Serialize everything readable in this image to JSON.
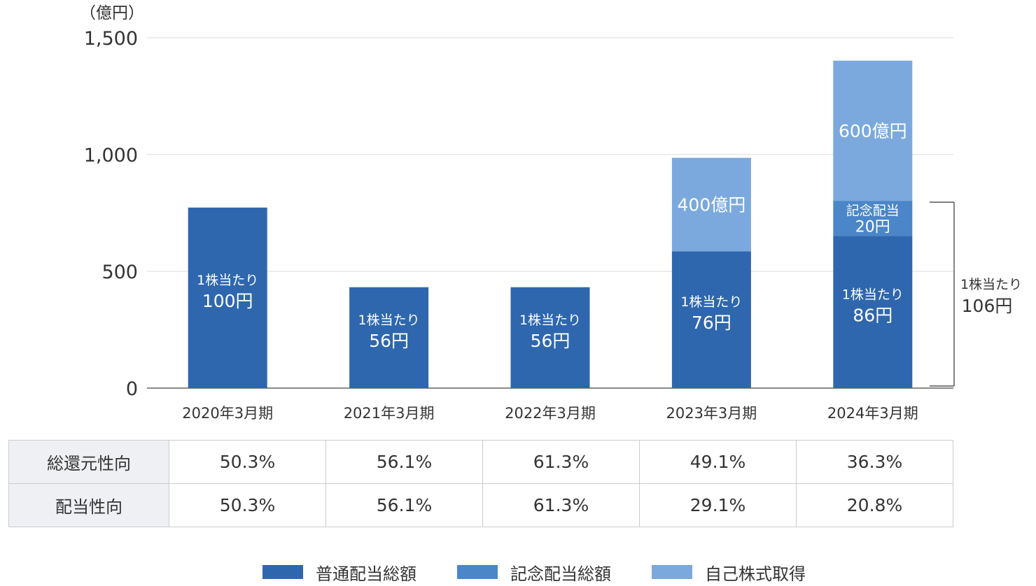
{
  "chart_data": {
    "type": "bar",
    "stacked": true,
    "unit_label": "（億円）",
    "ylim": [
      0,
      1500
    ],
    "yticks": [
      "0",
      "500",
      "1,000",
      "1,500"
    ],
    "ytick_values": [
      0,
      500,
      1000,
      1500
    ],
    "grid": true,
    "categories": [
      "2020年3月期",
      "2021年3月期",
      "2022年3月期",
      "2023年3月期",
      "2024年3月期"
    ],
    "series": [
      {
        "name": "普通配当総額",
        "color": "#2f67ae",
        "values": [
          773,
          432,
          432,
          586,
          651
        ]
      },
      {
        "name": "記念配当総額",
        "color": "#4a86c8",
        "values": [
          0,
          0,
          0,
          0,
          151
        ]
      },
      {
        "name": "自己株式取得",
        "color": "#7ba9de",
        "values": [
          0,
          0,
          0,
          400,
          600
        ]
      }
    ],
    "bar_labels": [
      [
        {
          "line1": "1株当たり",
          "line2": "100円"
        },
        null,
        null
      ],
      [
        {
          "line1": "1株当たり",
          "line2": "56円"
        },
        null,
        null
      ],
      [
        {
          "line1": "1株当たり",
          "line2": "56円"
        },
        null,
        null
      ],
      [
        {
          "line1": "1株当たり",
          "line2": "76円"
        },
        null,
        {
          "line1": "",
          "line2": "400億円"
        }
      ],
      [
        {
          "line1": "1株当たり",
          "line2": "86円"
        },
        {
          "line1": "記念配当",
          "line2": "20円"
        },
        {
          "line1": "",
          "line2": "600億円"
        }
      ]
    ],
    "bracket_annotation": {
      "line1": "1株当たり",
      "line2": "106円"
    }
  },
  "table": {
    "rows": [
      {
        "label": "総還元性向",
        "values": [
          "50.3%",
          "56.1%",
          "61.3%",
          "49.1%",
          "36.3%"
        ]
      },
      {
        "label": "配当性向",
        "values": [
          "50.3%",
          "56.1%",
          "61.3%",
          "29.1%",
          "20.8%"
        ]
      }
    ]
  },
  "legend": [
    {
      "label": "普通配当総額",
      "color": "#2f67ae"
    },
    {
      "label": "記念配当総額",
      "color": "#4a86c8"
    },
    {
      "label": "自己株式取得",
      "color": "#7ba9de"
    }
  ]
}
